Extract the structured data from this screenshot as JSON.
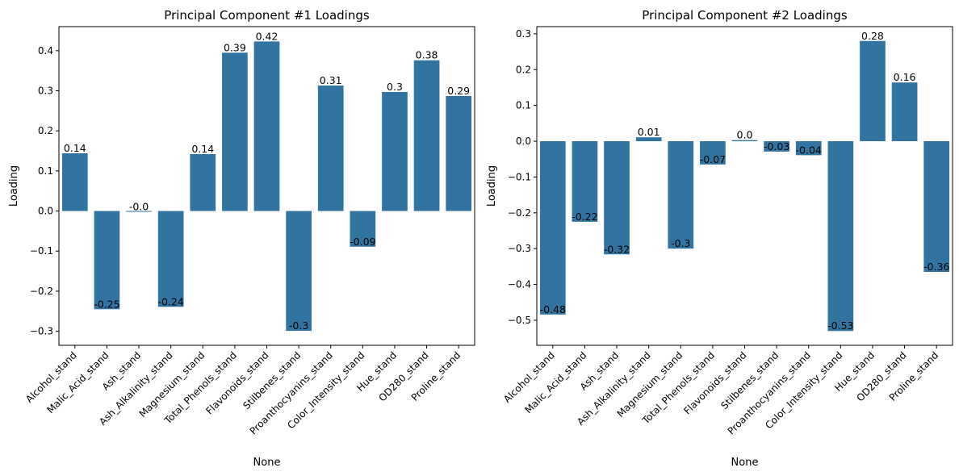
{
  "chart_data": [
    {
      "type": "bar",
      "title": "Principal Component #1 Loadings",
      "xlabel": "None",
      "ylabel": "Loading",
      "ylim": [
        -0.335,
        0.46
      ],
      "yticks": [
        "−0.3",
        "−0.2",
        "−0.1",
        "0.0",
        "0.1",
        "0.2",
        "0.3",
        "0.4"
      ],
      "ytick_values": [
        -0.3,
        -0.2,
        -0.1,
        0.0,
        0.1,
        0.2,
        0.3,
        0.4
      ],
      "categories": [
        "Alcohol_stand",
        "Malic_Acid_stand",
        "Ash_stand",
        "Ash_Alkalinity_stand",
        "Magnesium_stand",
        "Total_Phenols_stand",
        "Flavonoids_stand",
        "Stilbenes_stand",
        "Proanthocyanins_stand",
        "Color_Intensity_stand",
        "Hue_stand",
        "OD280_stand",
        "Proline_stand"
      ],
      "values": [
        0.144,
        -0.245,
        -0.002,
        -0.239,
        0.142,
        0.395,
        0.423,
        -0.299,
        0.313,
        -0.089,
        0.297,
        0.376,
        0.287
      ],
      "data_labels": [
        "0.14",
        "-0.25",
        "-0.0",
        "-0.24",
        "0.14",
        "0.39",
        "0.42",
        "-0.3",
        "0.31",
        "-0.09",
        "0.3",
        "0.38",
        "0.29"
      ],
      "bar_color": "#3274a1",
      "grid": false
    },
    {
      "type": "bar",
      "title": "Principal Component #2 Loadings",
      "xlabel": "None",
      "ylabel": "Loading",
      "ylim": [
        -0.57,
        0.32
      ],
      "yticks": [
        "−0.5",
        "−0.4",
        "−0.3",
        "−0.2",
        "−0.1",
        "0.0",
        "0.1",
        "0.2",
        "0.3"
      ],
      "ytick_values": [
        -0.5,
        -0.4,
        -0.3,
        -0.2,
        -0.1,
        0.0,
        0.1,
        0.2,
        0.3
      ],
      "categories": [
        "Alcohol_stand",
        "Malic_Acid_stand",
        "Ash_stand",
        "Ash_Alkalinity_stand",
        "Magnesium_stand",
        "Total_Phenols_stand",
        "Flavonoids_stand",
        "Stilbenes_stand",
        "Proanthocyanins_stand",
        "Color_Intensity_stand",
        "Hue_stand",
        "OD280_stand",
        "Proline_stand"
      ],
      "values": [
        -0.484,
        -0.225,
        -0.316,
        0.011,
        -0.3,
        -0.065,
        0.003,
        -0.029,
        -0.039,
        -0.53,
        0.28,
        0.164,
        -0.365
      ],
      "data_labels": [
        "-0.48",
        "-0.22",
        "-0.32",
        "0.01",
        "-0.3",
        "-0.07",
        "0.0",
        "-0.03",
        "-0.04",
        "-0.53",
        "0.28",
        "0.16",
        "-0.36"
      ],
      "bar_color": "#3274a1",
      "grid": false
    }
  ]
}
